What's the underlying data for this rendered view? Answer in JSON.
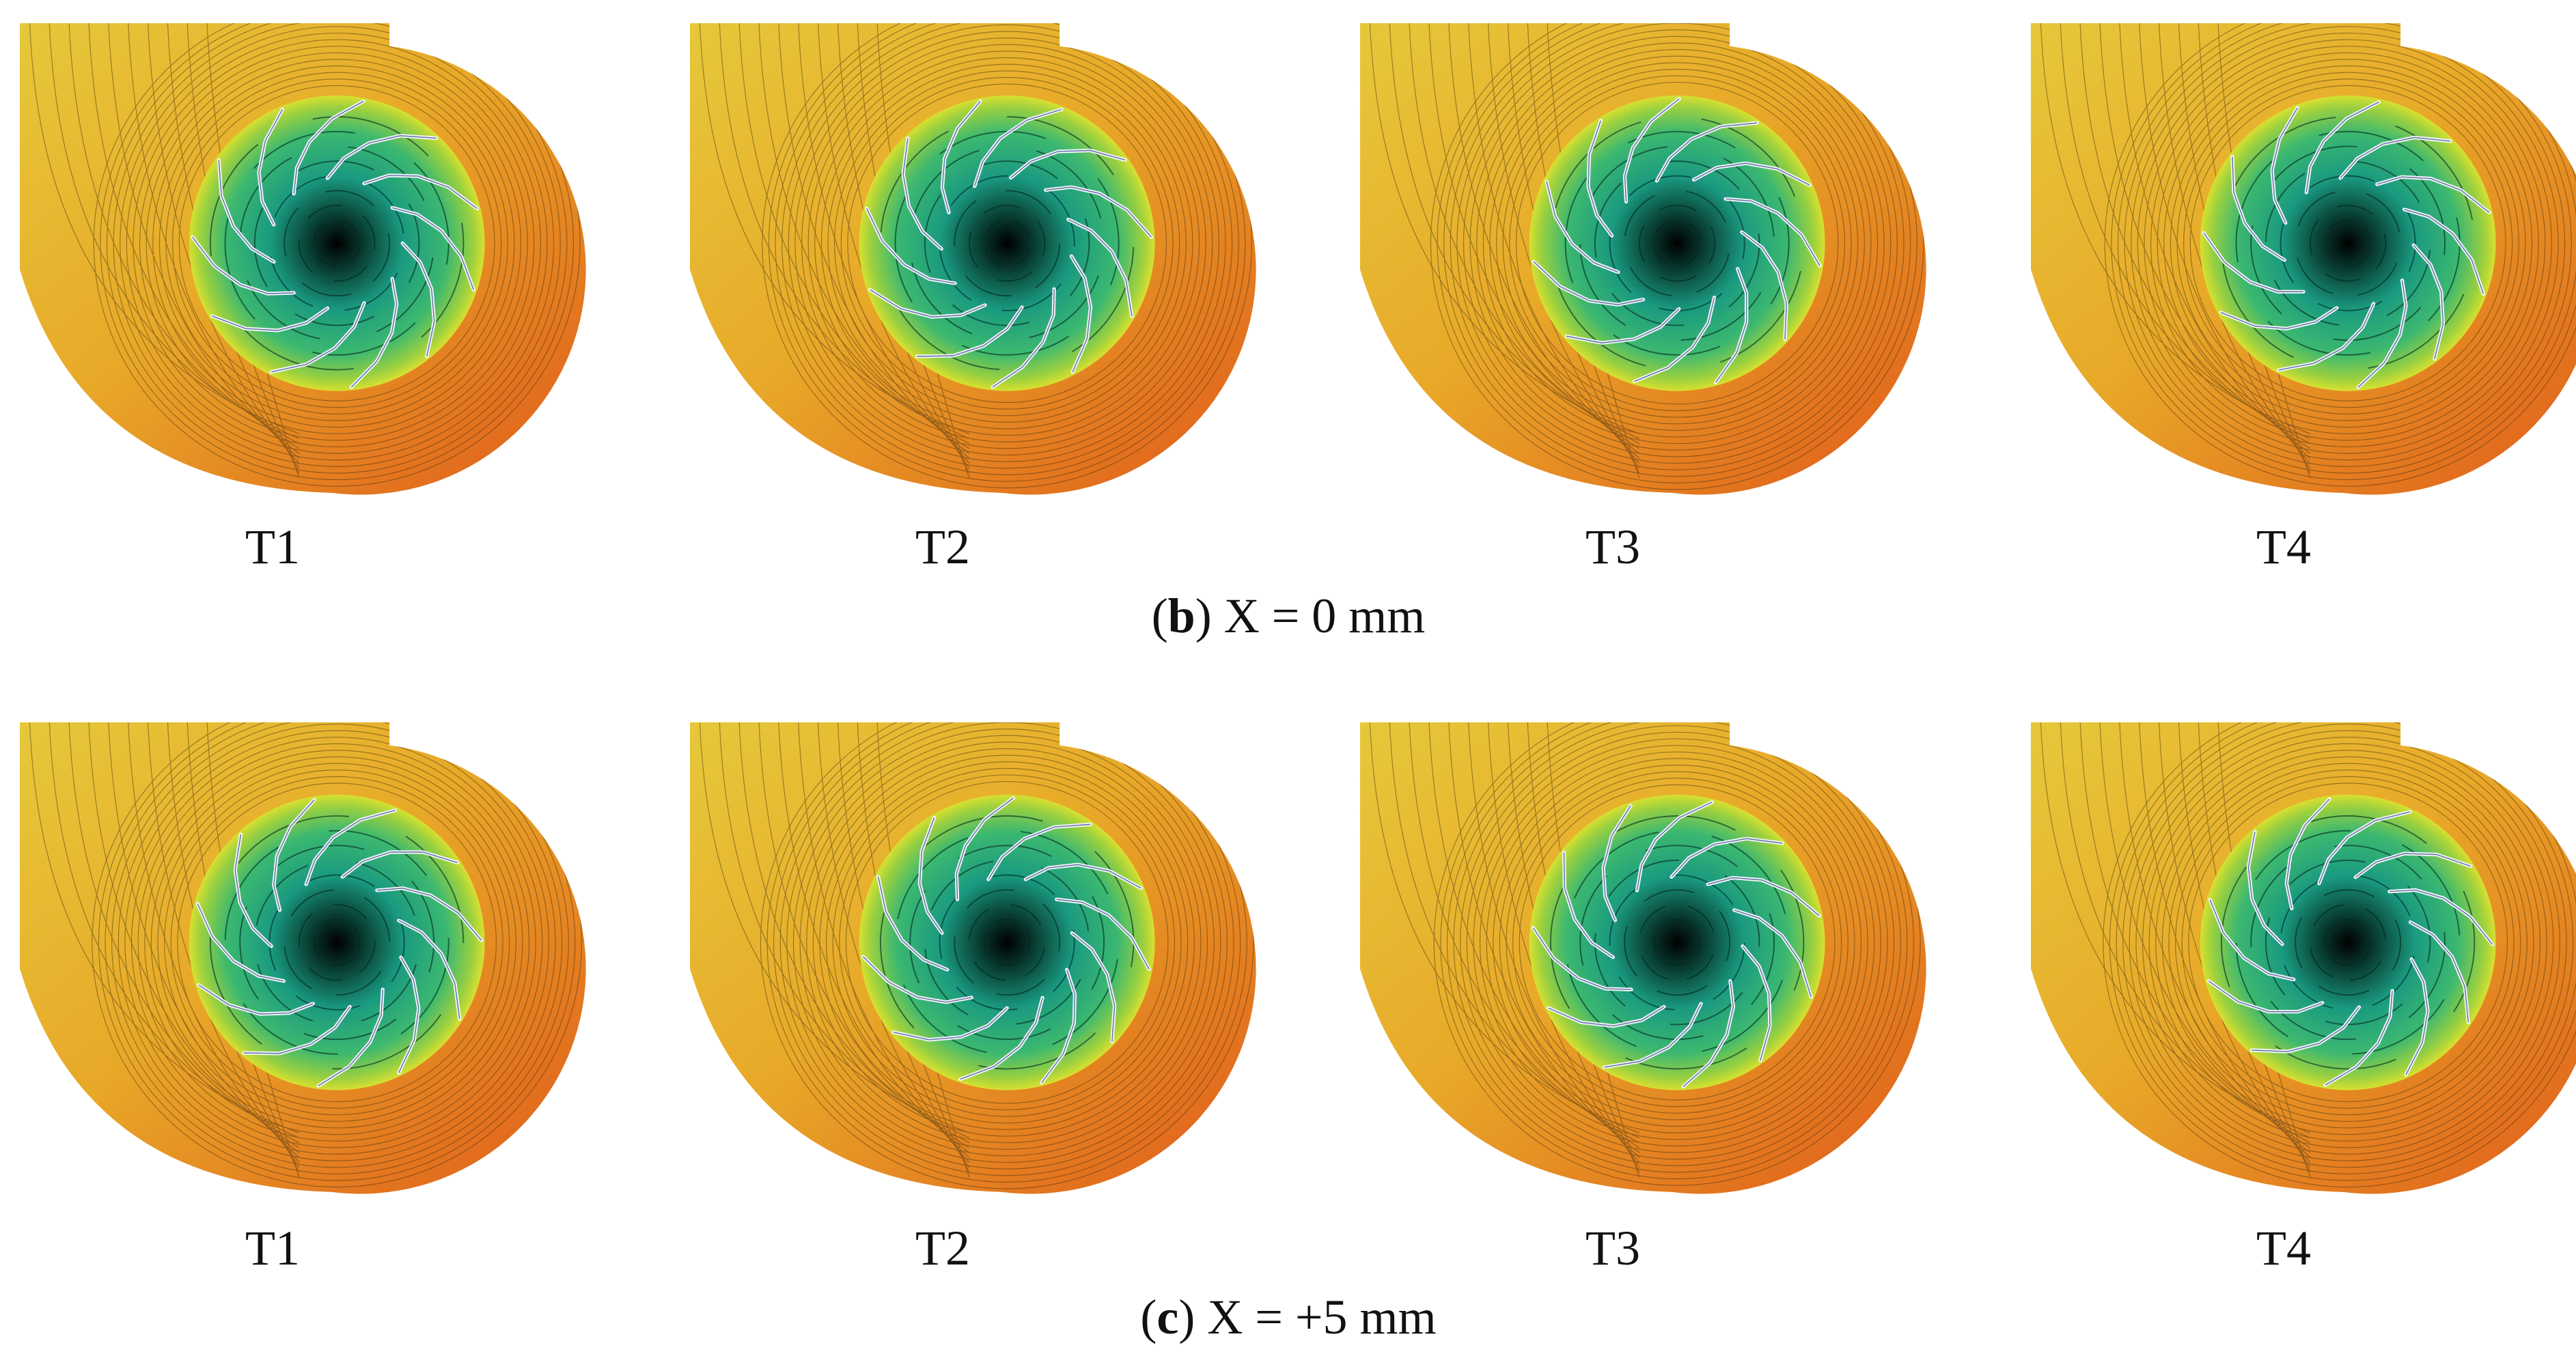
{
  "rows": [
    {
      "panels": [
        "T1",
        "T2",
        "T3",
        "T4"
      ],
      "caption": [
        "(",
        "b",
        ") X = 0 mm"
      ]
    },
    {
      "panels": [
        "T1",
        "T2",
        "T3",
        "T4"
      ],
      "caption": [
        "(",
        "c",
        ") X = +5 mm"
      ]
    }
  ]
}
